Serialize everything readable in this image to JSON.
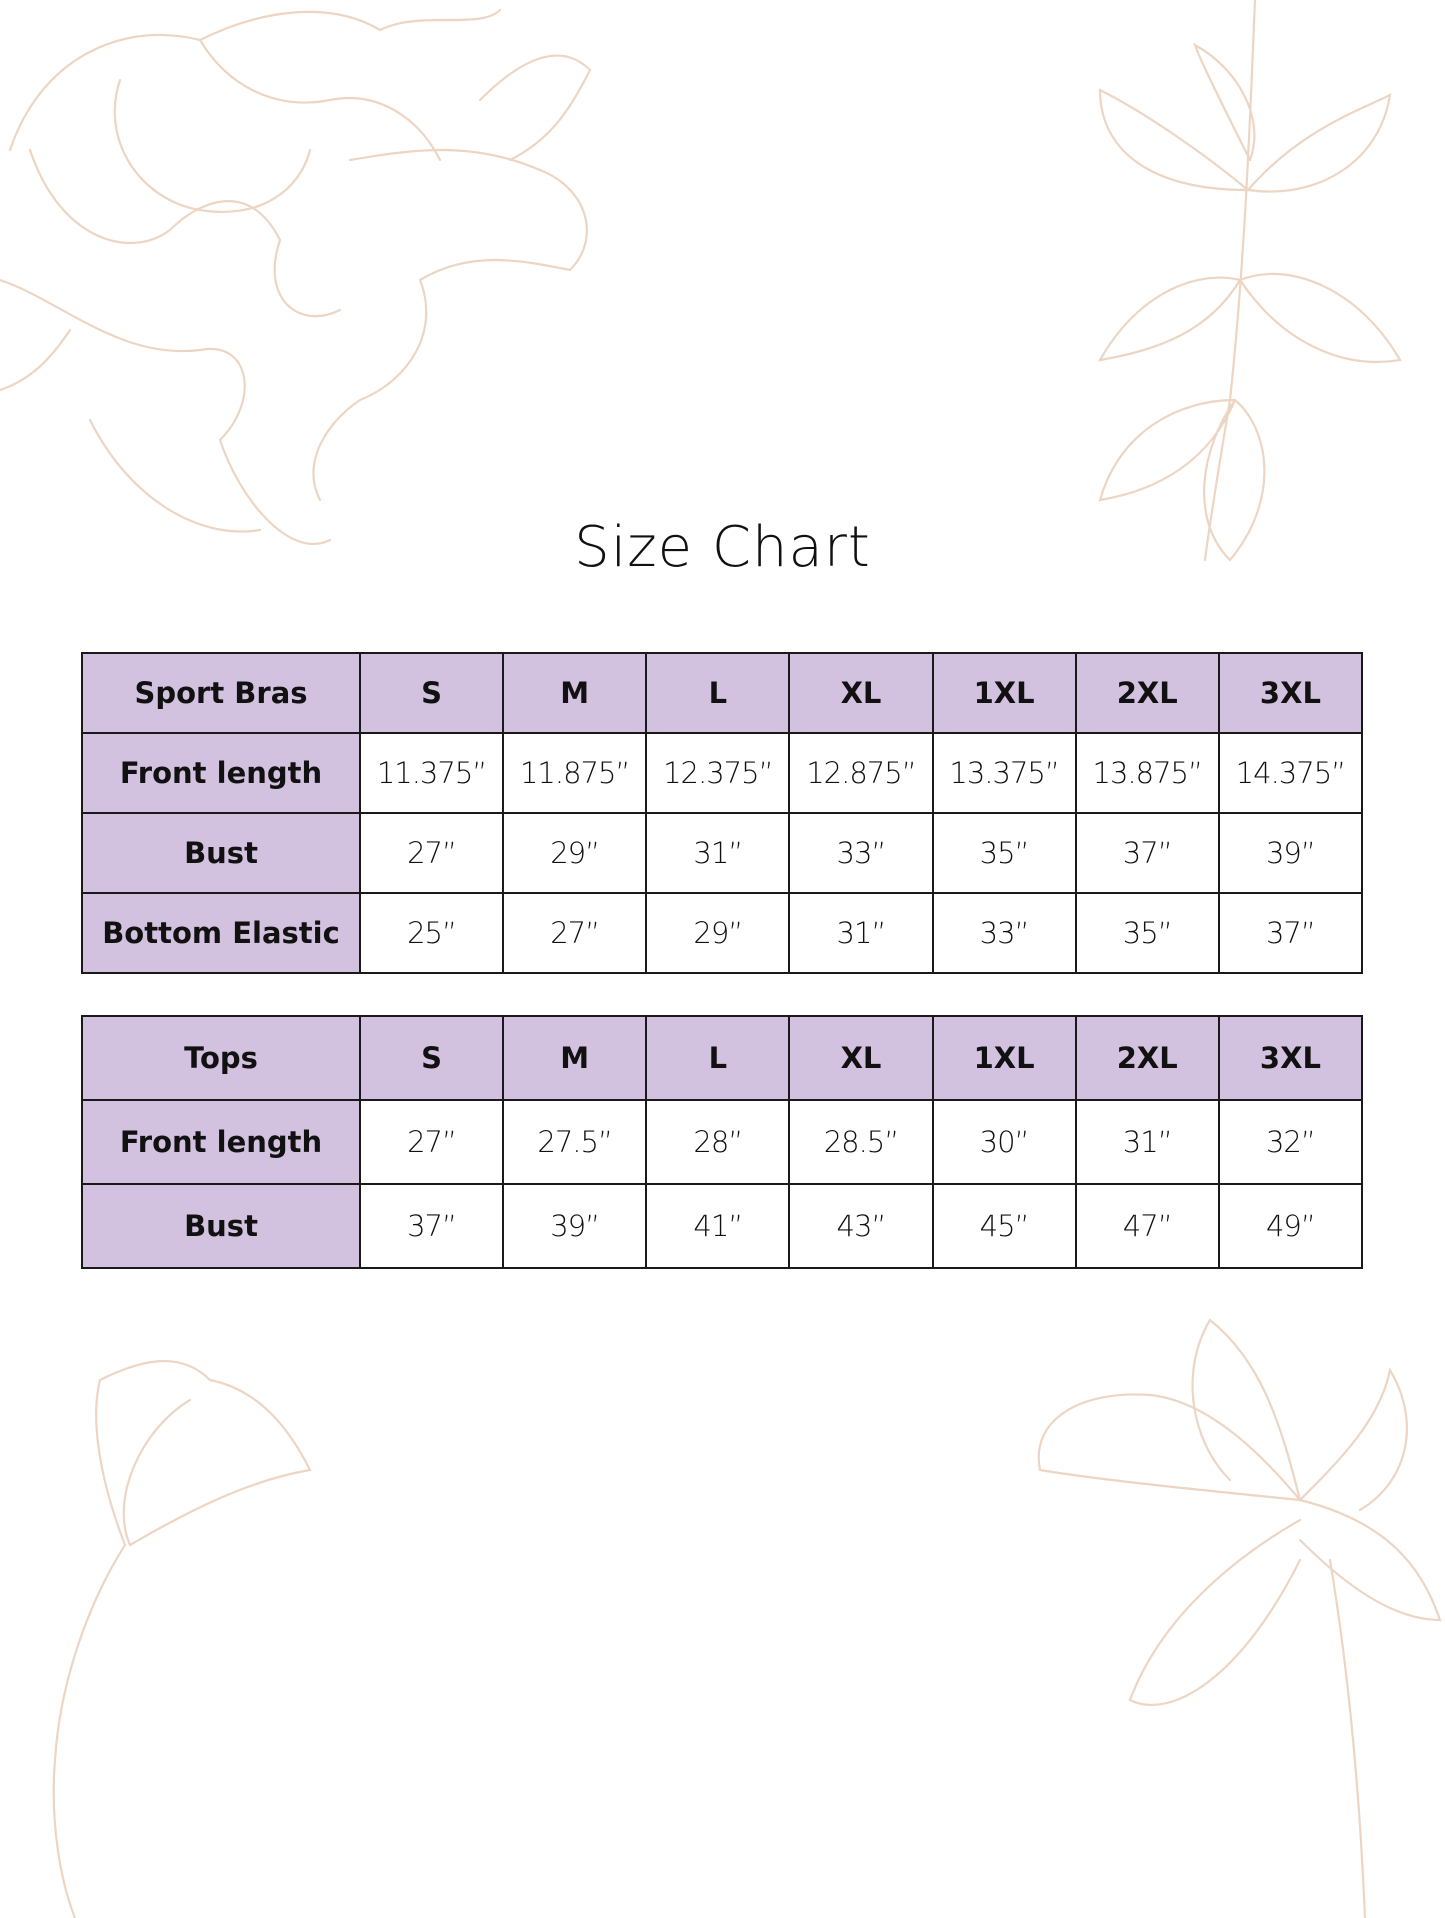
{
  "title": "Size Chart",
  "colors": {
    "header_fill": "#d3c1e0",
    "border": "#1a1a1a",
    "floral_line": "#edd5c3"
  },
  "decorations": [
    "floral-line-art-top-left",
    "leaf-branch-top-right",
    "tulip-bottom-left",
    "lily-bottom-right"
  ],
  "sport_bras": {
    "header": [
      "Sport Bras",
      "S",
      "M",
      "L",
      "XL",
      "1XL",
      "2XL",
      "3XL"
    ],
    "rows": [
      {
        "label": "Front length",
        "values": [
          "11.375”",
          "11.875”",
          "12.375”",
          "12.875”",
          "13.375”",
          "13.875”",
          "14.375”"
        ]
      },
      {
        "label": "Bust",
        "values": [
          "27”",
          "29”",
          "31”",
          "33”",
          "35”",
          "37”",
          "39”"
        ]
      },
      {
        "label": "Bottom Elastic",
        "values": [
          "25”",
          "27”",
          "29”",
          "31”",
          "33”",
          "35”",
          "37”"
        ]
      }
    ]
  },
  "tops": {
    "header": [
      "Tops",
      "S",
      "M",
      "L",
      "XL",
      "1XL",
      "2XL",
      "3XL"
    ],
    "rows": [
      {
        "label": "Front length",
        "values": [
          "27”",
          "27.5”",
          "28”",
          "28.5”",
          "30”",
          "31”",
          "32”"
        ]
      },
      {
        "label": "Bust",
        "values": [
          "37”",
          "39”",
          "41”",
          "43”",
          "45”",
          "47”",
          "49”"
        ]
      }
    ]
  }
}
